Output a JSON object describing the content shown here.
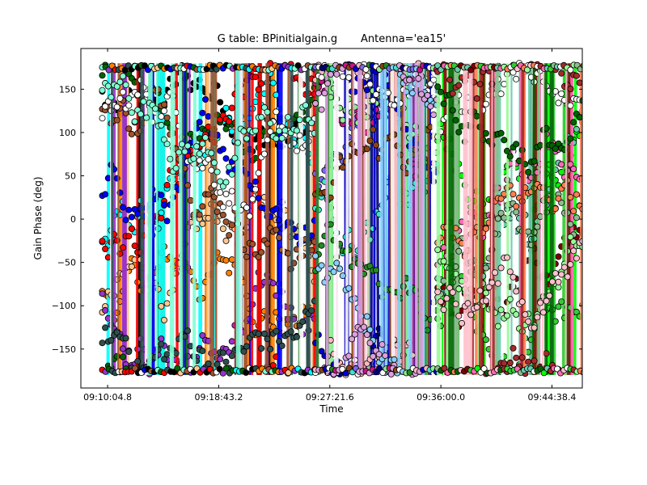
{
  "chart_data": {
    "type": "scatter",
    "title": "G table: BPinitialgain.g       Antenna='ea15'",
    "xlabel": "Time",
    "ylabel": "Gain Phase (deg)",
    "x_ticks": [
      "09:10:04.8",
      "09:18:43.2",
      "09:27:21.6",
      "09:36:00.0",
      "09:44:38.4"
    ],
    "y_ticks": [
      "150",
      "100",
      "50",
      "0",
      "−50",
      "−100",
      "−150"
    ],
    "y_tick_values": [
      150,
      100,
      50,
      0,
      -50,
      -100,
      -150
    ],
    "ylim": [
      -195,
      197
    ],
    "xlim": [
      "09:08:00",
      "09:47:00"
    ],
    "grid": false,
    "marker": "circle",
    "scans": [
      {
        "start": "09:09:40",
        "end": "09:26:10",
        "colors": [
          "#000000",
          "#ff8000",
          "#00ffff",
          "#ffc890",
          "#9932cc",
          "#006400",
          "#ff0000",
          "#0000ff",
          "#a0522d",
          "#ffffff",
          "#2f4f4f",
          "#7fffd4"
        ]
      },
      {
        "start": "09:26:15",
        "end": "09:35:40",
        "colors": [
          "#7b68ee",
          "#000080",
          "#c71585",
          "#40e0d0",
          "#90ee90",
          "#ffb6c1",
          "#0000cd",
          "#8b4513",
          "#228b22",
          "#ffffff",
          "#87cefa",
          "#dda0dd"
        ]
      },
      {
        "start": "09:35:45",
        "end": "09:48:40",
        "colors": [
          "#00ff00",
          "#800000",
          "#66cdaa",
          "#32cd32",
          "#ff69b4",
          "#ffffff",
          "#8fbc8f",
          "#ff7f50",
          "#98fb98",
          "#006400",
          "#a52a2a",
          "#ffc0cb"
        ]
      }
    ],
    "y_min": -180,
    "y_max": 180
  }
}
